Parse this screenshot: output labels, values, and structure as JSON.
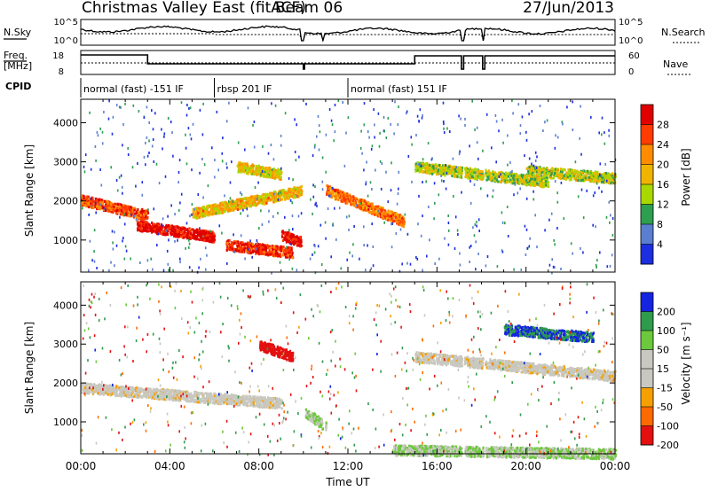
{
  "header": {
    "station": "Christmas Valley East (fitACF)",
    "beam": "Beam 06",
    "date": "27/Jun/2013"
  },
  "top_panels": {
    "nsky_label": "N.Sky",
    "nsearch_label": "N.Search",
    "freq_label_1": "Freq.",
    "freq_label_2": "[MHz]",
    "nave_label": "Nave",
    "cpid_label": "CPID",
    "nsky_ticks": [
      "10^5",
      "10^0"
    ],
    "nsearch_ticks": [
      "10^5",
      "10^0"
    ],
    "freq_ticks": [
      "18",
      "8"
    ],
    "nave_ticks": [
      "60",
      "0"
    ],
    "cpid_segments": [
      {
        "label": "normal (fast) -151 IF",
        "start": 0,
        "end": 6
      },
      {
        "label": "rbsp 201 IF",
        "start": 6,
        "end": 12
      },
      {
        "label": "normal (fast) 151 IF",
        "start": 12,
        "end": 24
      }
    ]
  },
  "panels": [
    {
      "quantity": "Power",
      "ylabel": "Slant Range [km]",
      "ytick_labels": [
        "4000",
        "3000",
        "2000",
        "1000"
      ],
      "colorbar_label": "Power [dB]",
      "colorbar_ticks": [
        "28",
        "24",
        "20",
        "16",
        "12",
        "8",
        "4"
      ],
      "colorbar_colors": [
        "#e00000",
        "#ff3c00",
        "#ff8c00",
        "#f0b400",
        "#a8d800",
        "#2e9e4f",
        "#5a7fd0",
        "#1c2fe0"
      ]
    },
    {
      "quantity": "Velocity",
      "ylabel": "Slant Range [km]",
      "ytick_labels": [
        "4000",
        "3000",
        "2000",
        "1000"
      ],
      "colorbar_label": "Velocity [m s⁻¹]",
      "colorbar_ticks": [
        "200",
        "100",
        "50",
        "15",
        "-15",
        "-50",
        "-100",
        "-200"
      ],
      "colorbar_colors": [
        "#1424e0",
        "#2f9b4c",
        "#6cc83c",
        "#c8c8c0",
        "#c8c8c0",
        "#f5a000",
        "#ff6a00",
        "#e41010"
      ]
    }
  ],
  "xaxis": {
    "label": "Time UT",
    "tick_labels": [
      "00:00",
      "04:00",
      "08:00",
      "12:00",
      "16:00",
      "20:00",
      "00:00"
    ]
  },
  "chart_data": {
    "type": "heatmap",
    "title": "Christmas Valley East (fitACF)",
    "subtitle": "Beam 06",
    "date": "27/Jun/2013",
    "xlabel": "Time UT",
    "x_range_hours": [
      0,
      24
    ],
    "x_ticks": [
      "00:00",
      "04:00",
      "08:00",
      "12:00",
      "16:00",
      "20:00",
      "00:00"
    ],
    "ylabel": "Slant Range [km]",
    "y_range_km": [
      180,
      4600
    ],
    "y_ticks": [
      1000,
      2000,
      3000,
      4000
    ],
    "data_gaps_hours": [
      [
        9.9,
        10.05
      ],
      [
        10.85,
        10.95
      ],
      [
        17.1,
        17.2
      ],
      [
        18.05,
        18.15
      ]
    ],
    "power_panel": {
      "colorbar_label": "Power [dB]",
      "colorbar_range": [
        0,
        30
      ],
      "scatter_features": [
        {
          "t_start": 0,
          "t_end": 3,
          "range_start": 2050,
          "range_end": 1650,
          "power_db": 24
        },
        {
          "t_start": 2.5,
          "t_end": 6,
          "range_start": 1400,
          "range_end": 1100,
          "power_db": 28
        },
        {
          "t_start": 5,
          "t_end": 10,
          "range_start": 1700,
          "range_end": 2300,
          "power_db": 18
        },
        {
          "t_start": 6.5,
          "t_end": 9.5,
          "range_start": 900,
          "range_end": 700,
          "power_db": 26
        },
        {
          "t_start": 7,
          "t_end": 9,
          "range_start": 2900,
          "range_end": 2700,
          "power_db": 16
        },
        {
          "t_start": 9,
          "t_end": 10,
          "range_start": 1150,
          "range_end": 950,
          "power_db": 28
        },
        {
          "t_start": 11,
          "t_end": 14.5,
          "range_start": 2300,
          "range_end": 1500,
          "power_db": 22
        },
        {
          "t_start": 15,
          "t_end": 21,
          "range_start": 2900,
          "range_end": 2500,
          "power_db": 14
        },
        {
          "t_start": 20,
          "t_end": 24,
          "range_start": 2800,
          "range_end": 2600,
          "power_db": 14
        }
      ]
    },
    "velocity_panel": {
      "colorbar_label": "Velocity [m s⁻¹]",
      "colorbar_range": [
        -200,
        200
      ],
      "scatter_features": [
        {
          "t_start": 0,
          "t_end": 9,
          "range_start": 1900,
          "range_end": 1500,
          "velocity": 0
        },
        {
          "t_start": 8,
          "t_end": 9.5,
          "range_start": 3000,
          "range_end": 2700,
          "velocity": -200
        },
        {
          "t_start": 10,
          "t_end": 11,
          "range_start": 1300,
          "range_end": 900,
          "velocity": 50
        },
        {
          "t_start": 15,
          "t_end": 24,
          "range_start": 2700,
          "range_end": 2200,
          "velocity": 0
        },
        {
          "t_start": 19,
          "t_end": 23,
          "range_start": 3400,
          "range_end": 3200,
          "velocity": 200
        },
        {
          "t_start": 14,
          "t_end": 24,
          "range_start": 300,
          "range_end": 200,
          "velocity": 50
        }
      ]
    }
  }
}
